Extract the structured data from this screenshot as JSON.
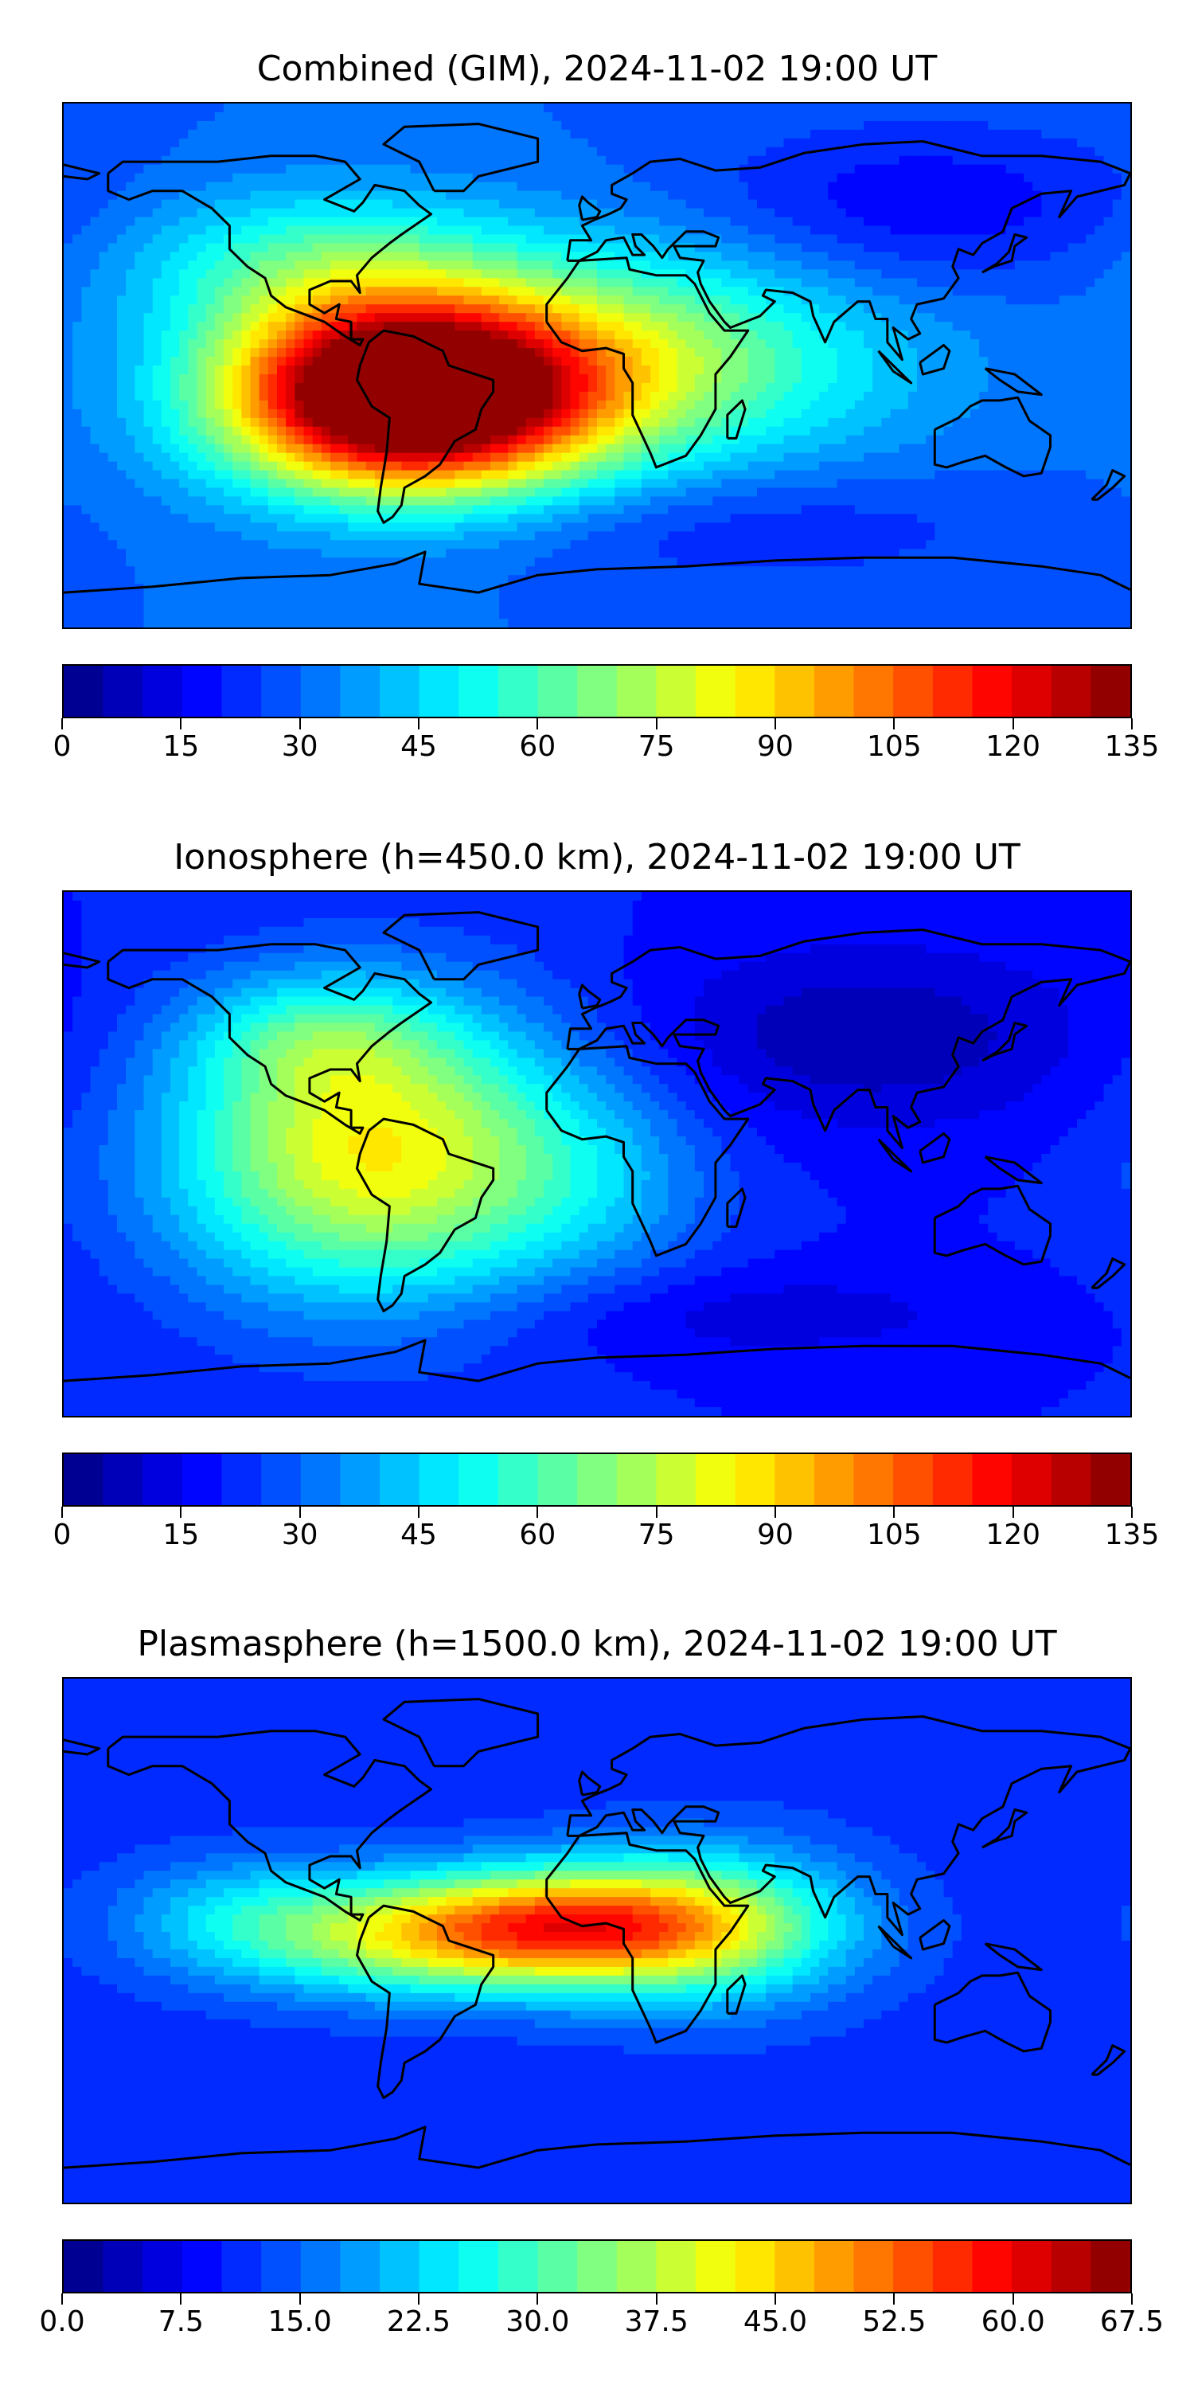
{
  "chart_data": [
    {
      "type": "heatmap",
      "title": "Combined (GIM), 2024-11-02 19:00 UT",
      "xlim": [
        -180,
        180
      ],
      "ylim": [
        -90,
        90
      ],
      "colorbar": {
        "min": 0,
        "max": 135,
        "levels": 27,
        "ticks": [
          "0",
          "15",
          "30",
          "45",
          "60",
          "75",
          "90",
          "105",
          "120",
          "135"
        ]
      },
      "background_value": 30,
      "features": [
        {
          "lon": -65,
          "lat": -10,
          "value": 122,
          "sx": 42,
          "sy": 22
        },
        {
          "lon": -40,
          "lat": -5,
          "value": 30,
          "sx": 50,
          "sy": 28
        },
        {
          "lon": -95,
          "lat": 35,
          "value": 25,
          "sx": 45,
          "sy": 18
        },
        {
          "lon": 20,
          "lat": 5,
          "value": 22,
          "sx": 40,
          "sy": 25
        },
        {
          "lon": 70,
          "lat": 0,
          "value": 12,
          "sx": 45,
          "sy": 25
        },
        {
          "lon": 110,
          "lat": 55,
          "value": -14,
          "sx": 55,
          "sy": 20
        },
        {
          "lon": 40,
          "lat": -55,
          "value": -10,
          "sx": 70,
          "sy": 15
        }
      ]
    },
    {
      "type": "heatmap",
      "title": "Ionosphere  (h=450.0 km), 2024-11-02 19:00 UT",
      "xlim": [
        -180,
        180
      ],
      "ylim": [
        -90,
        90
      ],
      "colorbar": {
        "min": 0,
        "max": 135,
        "levels": 27,
        "ticks": [
          "0",
          "15",
          "30",
          "45",
          "60",
          "75",
          "90",
          "105",
          "120",
          "135"
        ]
      },
      "background_value": 20,
      "features": [
        {
          "lon": -75,
          "lat": 0,
          "value": 65,
          "sx": 48,
          "sy": 35
        },
        {
          "lon": -95,
          "lat": 40,
          "value": 20,
          "sx": 30,
          "sy": 15
        },
        {
          "lon": 0,
          "lat": -10,
          "value": 12,
          "sx": 30,
          "sy": 25
        },
        {
          "lon": 90,
          "lat": 40,
          "value": -14,
          "sx": 55,
          "sy": 22
        },
        {
          "lon": 40,
          "lat": -55,
          "value": -8,
          "sx": 70,
          "sy": 12
        }
      ]
    },
    {
      "type": "heatmap",
      "title": "Plasmasphere (h=1500.0 km), 2024-11-02 19:00 UT",
      "xlim": [
        -180,
        180
      ],
      "ylim": [
        -90,
        90
      ],
      "colorbar": {
        "min": 0.0,
        "max": 67.5,
        "levels": 27,
        "ticks": [
          "0.0",
          "7.5",
          "15.0",
          "22.5",
          "30.0",
          "37.5",
          "45.0",
          "52.5",
          "60.0",
          "67.5"
        ]
      },
      "background_value": 11,
      "features": [
        {
          "lon": -10,
          "lat": 5,
          "value": 38,
          "sx": 45,
          "sy": 14
        },
        {
          "lon": -70,
          "lat": 0,
          "value": 16,
          "sx": 45,
          "sy": 14
        },
        {
          "lon": 40,
          "lat": 5,
          "value": 15,
          "sx": 35,
          "sy": 20
        },
        {
          "lon": -120,
          "lat": 10,
          "value": 8,
          "sx": 30,
          "sy": 14
        }
      ]
    }
  ]
}
